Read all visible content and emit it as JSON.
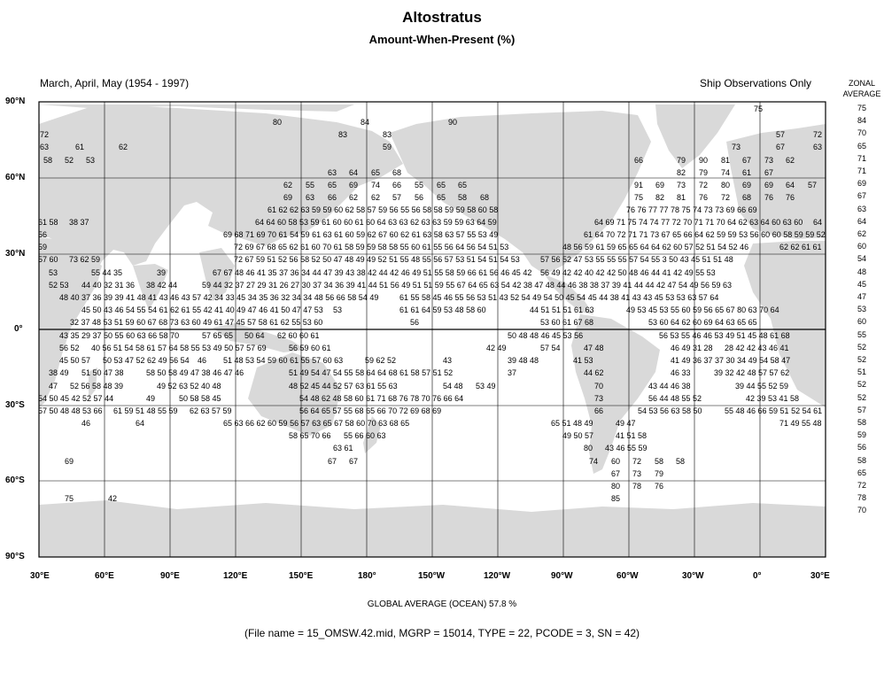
{
  "title": "Altostratus",
  "subtitle": "Amount-When-Present (%)",
  "period": "March, April, May (1954 - 1997)",
  "source_note": "Ship Observations Only",
  "zonal_header": [
    "ZONAL",
    "AVERAGE"
  ],
  "zonal_average": [
    75,
    84,
    70,
    65,
    71,
    71,
    69,
    67,
    63,
    64,
    62,
    60,
    54,
    48,
    45,
    47,
    53,
    60,
    55,
    52,
    52,
    51,
    52,
    52,
    57,
    58,
    59,
    56,
    58,
    65,
    72,
    78,
    70
  ],
  "lat_labels": [
    "90°N",
    "60°N",
    "30°N",
    "0°",
    "30°S",
    "60°S",
    "90°S"
  ],
  "lon_labels": [
    "30°E",
    "60°E",
    "90°E",
    "120°E",
    "150°E",
    "180°",
    "150°W",
    "120°W",
    "90°W",
    "60°W",
    "30°W",
    "0°",
    "30°E"
  ],
  "global_average": "GLOBAL AVERAGE (OCEAN)   57.8 %",
  "file_info": "(File name = 15_OMSW.42.mid, MGRP = 15014, TYPE = 22, PCODE = 3, SN = 42)",
  "colors": {
    "land": "#d9d9d9",
    "ocean": "#ffffff",
    "grid": "#000000"
  },
  "cell_values": [
    [
      "75",
      ""
    ],
    [
      "80",
      "84",
      "90"
    ],
    [
      "72",
      "83",
      "83",
      "57",
      "72"
    ],
    [
      "63",
      "61",
      "62",
      "59",
      "73",
      "67",
      "63"
    ],
    [
      "58",
      "52",
      "53",
      "66",
      "79",
      "90",
      "81",
      "67",
      "73",
      "62"
    ],
    [
      "63",
      "64",
      "65",
      "68",
      "82",
      "79",
      "74",
      "61",
      "67"
    ],
    [
      "62",
      "55",
      "65",
      "69",
      "74",
      "66",
      "55",
      "65",
      "65",
      "91",
      "69",
      "73",
      "72",
      "80",
      "69",
      "69",
      "64",
      "57"
    ],
    [
      "69",
      "63",
      "66",
      "62",
      "62",
      "57",
      "56",
      "65",
      "58",
      "68",
      "75",
      "82",
      "81",
      "76",
      "72",
      "68",
      "76",
      "76"
    ]
  ]
}
